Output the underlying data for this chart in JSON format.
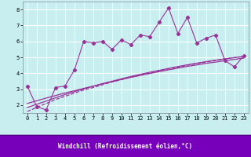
{
  "xlabel": "Windchill (Refroidissement éolien,°C)",
  "bg_color": "#c8eef0",
  "line_color": "#993399",
  "label_bg_color": "#6600aa",
  "label_text_color": "#ffffff",
  "x": [
    0,
    1,
    2,
    3,
    4,
    5,
    6,
    7,
    8,
    9,
    10,
    11,
    12,
    13,
    14,
    15,
    16,
    17,
    18,
    19,
    20,
    21,
    22,
    23
  ],
  "y_main": [
    3.2,
    1.9,
    1.7,
    3.1,
    3.2,
    4.2,
    6.0,
    5.9,
    6.0,
    5.5,
    6.1,
    5.8,
    6.4,
    6.3,
    7.2,
    8.1,
    6.5,
    7.5,
    5.9,
    6.2,
    6.4,
    4.8,
    4.4,
    5.1
  ],
  "y_reg1": [
    1.6,
    1.85,
    2.1,
    2.35,
    2.55,
    2.75,
    2.95,
    3.1,
    3.28,
    3.45,
    3.6,
    3.75,
    3.9,
    4.02,
    4.15,
    4.27,
    4.38,
    4.5,
    4.6,
    4.7,
    4.8,
    4.9,
    4.98,
    5.05
  ],
  "y_reg2": [
    1.85,
    2.05,
    2.25,
    2.46,
    2.66,
    2.84,
    3.02,
    3.18,
    3.35,
    3.5,
    3.65,
    3.8,
    3.93,
    4.06,
    4.18,
    4.3,
    4.42,
    4.53,
    4.63,
    4.73,
    4.82,
    4.9,
    4.98,
    5.06
  ],
  "y_reg3": [
    2.1,
    2.27,
    2.44,
    2.6,
    2.76,
    2.9,
    3.05,
    3.19,
    3.34,
    3.47,
    3.61,
    3.74,
    3.86,
    3.98,
    4.1,
    4.21,
    4.32,
    4.43,
    4.52,
    4.62,
    4.7,
    4.79,
    4.87,
    4.95
  ],
  "ylim": [
    1.5,
    8.5
  ],
  "yticks": [
    2,
    3,
    4,
    5,
    6,
    7,
    8
  ],
  "xticks": [
    0,
    1,
    2,
    3,
    4,
    5,
    6,
    7,
    8,
    9,
    10,
    11,
    12,
    13,
    14,
    15,
    16,
    17,
    18,
    19,
    20,
    21,
    22,
    23
  ],
  "tick_fontsize": 5.0,
  "xlabel_fontsize": 5.5
}
